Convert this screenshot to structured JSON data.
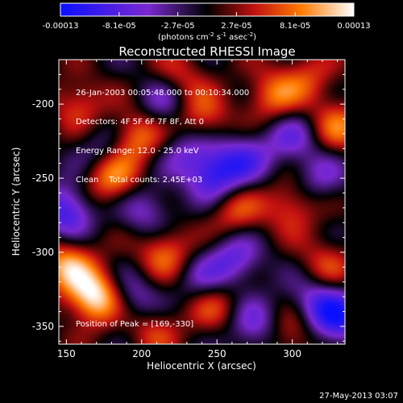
{
  "chart_data": {
    "type": "heatmap",
    "title": "Reconstructed RHESSI Image",
    "xlabel": "Heliocentric X (arcsec)",
    "ylabel": "Heliocentric Y (arcsec)",
    "xlim": [
      145,
      335
    ],
    "ylim": [
      -362,
      -170
    ],
    "xticks": [
      150,
      200,
      250,
      300
    ],
    "yticks": [
      -200,
      -250,
      -300,
      -350
    ],
    "colorbar": {
      "min": -0.00013,
      "max": 0.00013,
      "tick_labels": [
        "-0.00013",
        "-8.1e-05",
        "-2.7e-05",
        "2.7e-05",
        "8.1e-05",
        "0.00013"
      ],
      "units_label": "(photons cm",
      "units_sup1": "-2",
      "units_mid": " s",
      "units_sup2": "-1",
      "units_end": " asec",
      "units_sup3": "-2",
      "units_close": ")"
    },
    "annotations": [
      "26-Jan-2003 00:05:48.000 to 00:10:34.000",
      "Detectors: 4F 5F 6F 7F 8F, Att 0",
      "Energy Range: 12.0 - 25.0 keV",
      "Clean    Total counts: 2.45E+03"
    ],
    "peak_label": "Position of Peak = [169,-330]",
    "peak": {
      "x": 169,
      "y": -330,
      "value": 0.00013
    },
    "sources": [
      {
        "x": 169,
        "y": -330,
        "v": 1.0
      },
      {
        "x": 180,
        "y": -250,
        "v": 0.7
      },
      {
        "x": 196,
        "y": -222,
        "v": 0.65
      },
      {
        "x": 150,
        "y": -308,
        "v": 0.7
      },
      {
        "x": 215,
        "y": -300,
        "v": 0.6
      },
      {
        "x": 240,
        "y": -210,
        "v": 0.55
      },
      {
        "x": 262,
        "y": -272,
        "v": 0.5
      },
      {
        "x": 287,
        "y": -195,
        "v": 0.55
      },
      {
        "x": 330,
        "y": -215,
        "v": 0.55
      },
      {
        "x": 300,
        "y": -268,
        "v": 0.5
      },
      {
        "x": 322,
        "y": -310,
        "v": 0.45
      },
      {
        "x": 248,
        "y": -335,
        "v": 0.5
      },
      {
        "x": 300,
        "y": -355,
        "v": 0.45
      },
      {
        "x": 208,
        "y": -352,
        "v": 0.4
      },
      {
        "x": 158,
        "y": -200,
        "v": 0.45
      },
      {
        "x": 225,
        "y": -182,
        "v": 0.4
      },
      {
        "x": 310,
        "y": -182,
        "v": 0.4
      },
      {
        "x": 150,
        "y": -272,
        "v": -0.75
      },
      {
        "x": 250,
        "y": -248,
        "v": -0.75
      },
      {
        "x": 203,
        "y": -272,
        "v": -0.45
      },
      {
        "x": 232,
        "y": -232,
        "v": -0.45
      },
      {
        "x": 270,
        "y": -236,
        "v": -0.45
      },
      {
        "x": 318,
        "y": -250,
        "v": -0.4
      },
      {
        "x": 262,
        "y": -305,
        "v": -0.55
      },
      {
        "x": 195,
        "y": -330,
        "v": -0.45
      },
      {
        "x": 330,
        "y": -345,
        "v": -0.75
      },
      {
        "x": 275,
        "y": -350,
        "v": -0.5
      },
      {
        "x": 315,
        "y": -332,
        "v": -0.5
      },
      {
        "x": 215,
        "y": -198,
        "v": -0.45
      },
      {
        "x": 300,
        "y": -222,
        "v": -0.45
      },
      {
        "x": 175,
        "y": -230,
        "v": -0.4
      },
      {
        "x": 240,
        "y": -320,
        "v": -0.4
      }
    ],
    "timestamp": "27-May-2013 03:07"
  }
}
